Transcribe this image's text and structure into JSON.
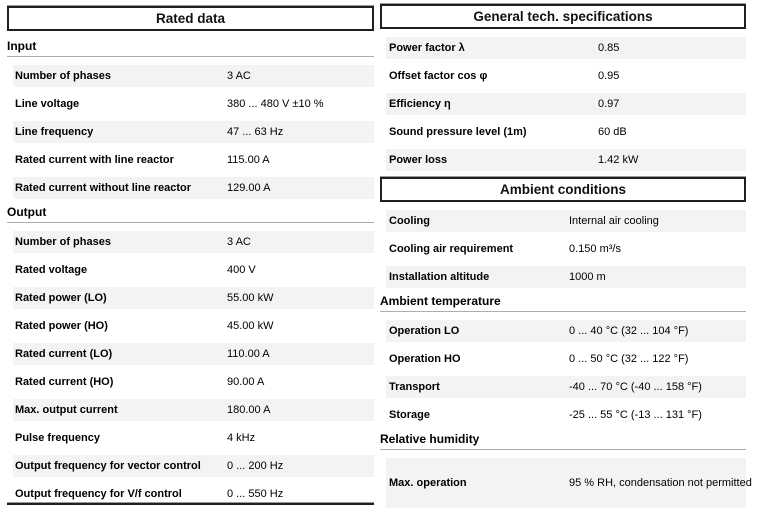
{
  "columns": [
    {
      "name": "rated-data",
      "blocks": [
        {
          "type": "header",
          "text": "Rated data"
        },
        {
          "type": "heading",
          "text": "Input"
        },
        {
          "type": "row",
          "label": "Number of phases",
          "value": "3 AC"
        },
        {
          "type": "row",
          "label": "Line voltage",
          "value": "380 ... 480 V ±10 %"
        },
        {
          "type": "row",
          "label": "Line frequency",
          "value": "47 ... 63 Hz"
        },
        {
          "type": "row",
          "label": "Rated current with line reactor",
          "value": "115.00 A"
        },
        {
          "type": "row",
          "label": "Rated current without line reactor",
          "value": "129.00 A"
        },
        {
          "type": "heading",
          "text": "Output"
        },
        {
          "type": "row",
          "label": "Number of phases",
          "value": "3 AC"
        },
        {
          "type": "row",
          "label": "Rated voltage",
          "value": "400 V"
        },
        {
          "type": "row",
          "label": "Rated power (LO)",
          "value": "55.00 kW"
        },
        {
          "type": "row",
          "label": "Rated power (HO)",
          "value": "45.00 kW"
        },
        {
          "type": "row",
          "label": "Rated current (LO)",
          "value": "110.00 A"
        },
        {
          "type": "row",
          "label": "Rated current (HO)",
          "value": "90.00 A"
        },
        {
          "type": "row",
          "label": "Max. output current",
          "value": "180.00 A"
        },
        {
          "type": "row",
          "label": "Pulse frequency",
          "value": "4 kHz"
        },
        {
          "type": "row",
          "label": "Output frequency for vector control",
          "value": "0 ... 200 Hz"
        },
        {
          "type": "row",
          "label": "Output frequency for V/f control",
          "value": "0 ... 550 Hz"
        },
        {
          "type": "cutline"
        }
      ]
    },
    {
      "name": "general-and-ambient",
      "blocks": [
        {
          "type": "header",
          "text": "General tech. specifications"
        },
        {
          "type": "row",
          "label": "Power factor λ",
          "value": "0.85"
        },
        {
          "type": "row",
          "label": "Offset factor cos φ",
          "value": "0.95"
        },
        {
          "type": "row",
          "label": "Efficiency η",
          "value": "0.97"
        },
        {
          "type": "row",
          "label": "Sound pressure level (1m)",
          "value": "60 dB"
        },
        {
          "type": "row",
          "label": "Power loss",
          "value": "1.42 kW"
        },
        {
          "type": "header",
          "text": "Ambient conditions"
        },
        {
          "type": "row",
          "label": "Cooling",
          "value": "Internal air cooling"
        },
        {
          "type": "row",
          "label": "Cooling air requirement",
          "value": "0.150 m³/s"
        },
        {
          "type": "row",
          "label": "Installation altitude",
          "value": "1000 m"
        },
        {
          "type": "heading",
          "text": "Ambient temperature"
        },
        {
          "type": "row",
          "label": "Operation LO",
          "value": "0 ... 40 °C (32 ... 104 °F)"
        },
        {
          "type": "row",
          "label": "Operation HO",
          "value": "0 ... 50 °C (32 ... 122 °F)"
        },
        {
          "type": "row",
          "label": "Transport",
          "value": "-40 ... 70 °C (-40 ... 158 °F)"
        },
        {
          "type": "row",
          "label": "Storage",
          "value": "-25 ... 55 °C (-13 ... 131 °F)"
        },
        {
          "type": "heading",
          "text": "Relative humidity"
        },
        {
          "type": "row",
          "label": "Max. operation",
          "value": "95 % RH, condensation not permitted",
          "tall": true
        }
      ]
    }
  ]
}
